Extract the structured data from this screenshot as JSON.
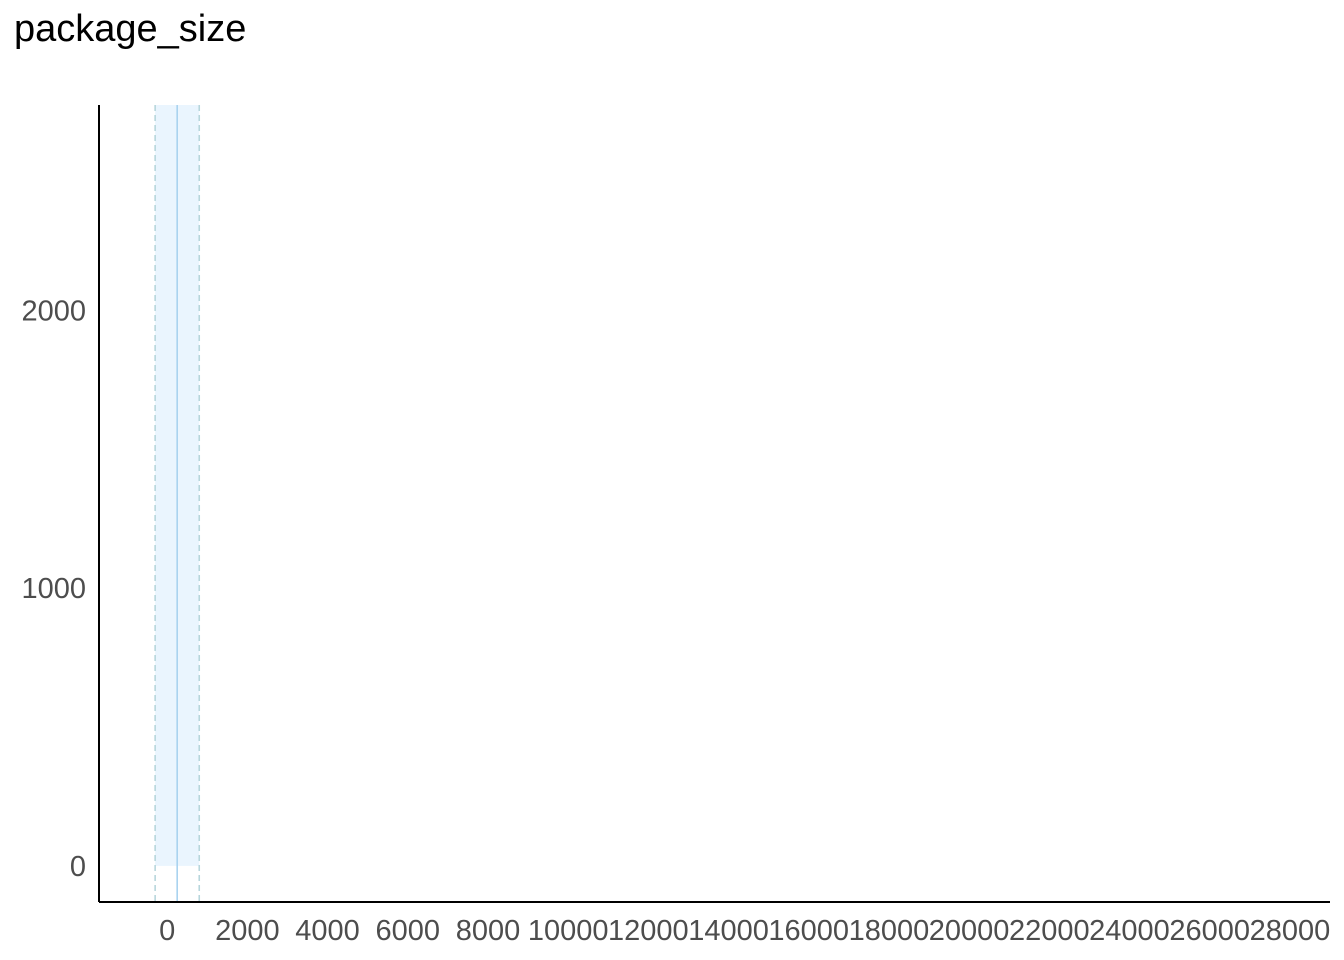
{
  "chart_data": {
    "type": "bar",
    "title": "package_size",
    "xlabel": "",
    "ylabel": "",
    "xlim": [
      -1700,
      29000
    ],
    "ylim": [
      -130,
      2740
    ],
    "x_ticks": [
      0,
      2000,
      4000,
      6000,
      8000,
      10000,
      12000,
      14000,
      16000,
      18000,
      20000,
      22000,
      24000,
      26000,
      28000
    ],
    "x_tick_labels": [
      "0",
      "2000",
      "4000",
      "6000",
      "8000",
      "10000",
      "12000",
      "14000",
      "16000",
      "18000",
      "20000",
      "22000",
      "24000",
      "26000",
      "28000"
    ],
    "y_ticks": [
      0,
      1000,
      2000
    ],
    "y_tick_labels": [
      "0",
      "1000",
      "2000"
    ],
    "bars": [
      {
        "x0": -300,
        "x1": 800,
        "value": 2740
      }
    ],
    "reference_lines": {
      "median": 250,
      "lower": -300,
      "upper": 800
    },
    "grid": false,
    "colors": {
      "bar_fill": "#eaf5fe",
      "median_line": "#a9d3ef",
      "bound_lines": "#b7d6dc",
      "axis": "#000000",
      "tick_text": "#4d4d4d"
    }
  }
}
